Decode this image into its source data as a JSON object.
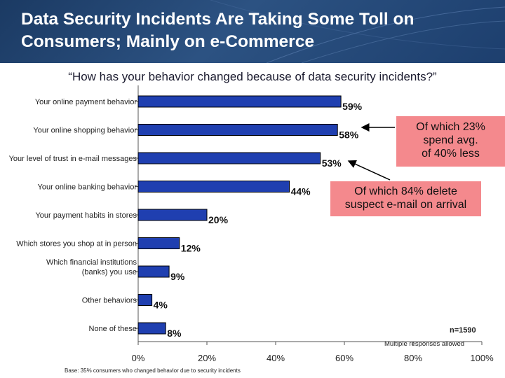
{
  "header": {
    "title_line1": "Data Security Incidents Are Taking Some Toll on",
    "title_line2": "Consumers; Mainly on e-Commerce",
    "bg_color": "#264a78"
  },
  "question": "“How has your behavior changed because of data security incidents?”",
  "chart_data": {
    "type": "bar",
    "orientation": "horizontal",
    "title": "“How has your behavior changed because of data security incidents?”",
    "categories": [
      "Your online payment behavior",
      "Your online shopping behavior",
      "Your level of trust in e-mail messages",
      "Your online banking behavior",
      "Your payment habits in stores",
      "Which stores you shop at in person",
      "Which financial institutions|(banks) you use",
      "Other behaviors",
      "None of these"
    ],
    "values": [
      59,
      58,
      53,
      44,
      20,
      12,
      9,
      4,
      8
    ],
    "value_labels": [
      "59%",
      "58%",
      "53%",
      "44%",
      "20%",
      "12%",
      "9%",
      "4%",
      "8%"
    ],
    "xlim": [
      0,
      100
    ],
    "xticks": [
      0,
      20,
      40,
      60,
      80,
      100
    ],
    "xtick_labels": [
      "0%",
      "20%",
      "40%",
      "60%",
      "80%",
      "100%"
    ],
    "bar_color": "#1f3fb0",
    "bar_edge_color": "#000000",
    "grid": false,
    "legend": "none"
  },
  "callouts": [
    {
      "text": "Of which 23% spend avg. of 40% less",
      "lines": [
        "Of which 23%",
        "spend avg.",
        "of 40% less"
      ],
      "color": "#f4898d"
    },
    {
      "text": "Of which 84% delete suspect e-mail on arrival",
      "lines": [
        "Of which 84% delete",
        "suspect e-mail on arrival"
      ],
      "color": "#f4898d"
    }
  ],
  "footnotes": {
    "n": "n=1590",
    "multiple": "Multiple responses allowed",
    "base": "Base: 35% consumers who changed behavior due to security incidents"
  }
}
